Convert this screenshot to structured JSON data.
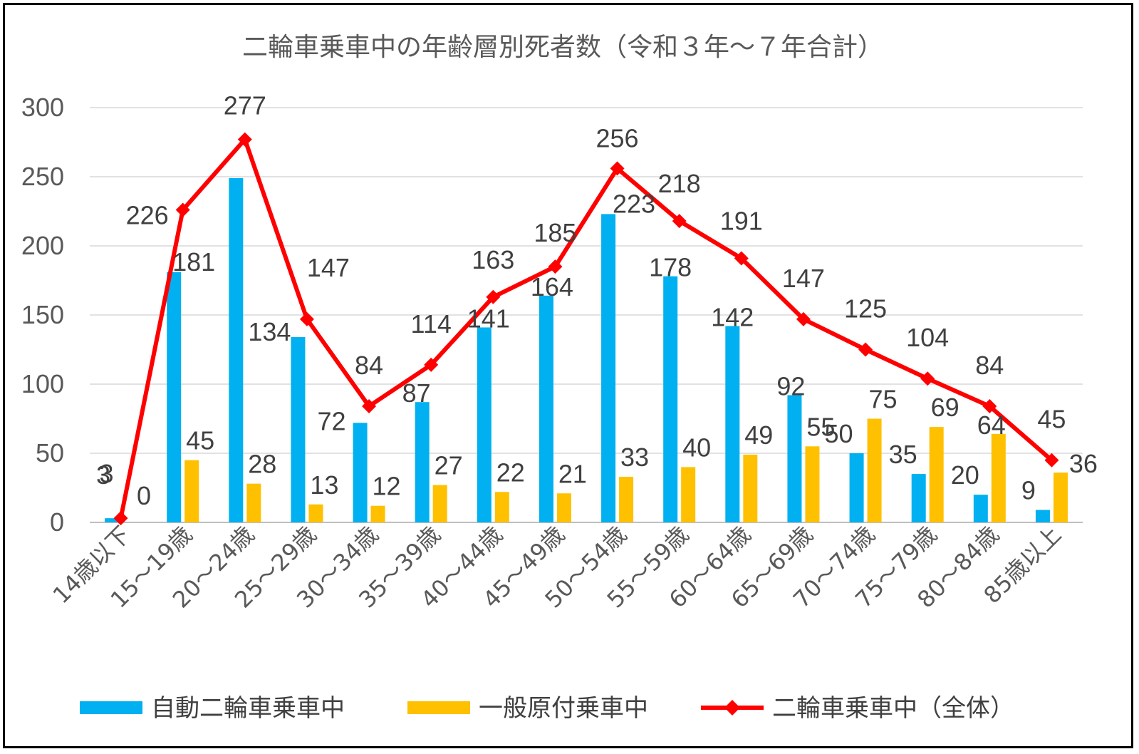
{
  "chart_data": {
    "type": "bar",
    "title": "二輪車乗車中の年齢層別死者数（令和３年～７年合計）",
    "categories": [
      "14歳以下",
      "15～19歳",
      "20～24歳",
      "25～29歳",
      "30～34歳",
      "35～39歳",
      "40～44歳",
      "45～49歳",
      "50～54歳",
      "55～59歳",
      "60～64歳",
      "65～69歳",
      "70～74歳",
      "75～79歳",
      "80～84歳",
      "85歳以上"
    ],
    "series": [
      {
        "name": "自動二輪車乗車中",
        "kind": "bar",
        "color": "#00B0F0",
        "values": [
          3,
          181,
          249,
          134,
          72,
          87,
          141,
          164,
          223,
          178,
          142,
          92,
          50,
          35,
          20,
          9
        ]
      },
      {
        "name": "一般原付乗車中",
        "kind": "bar",
        "color": "#FFC000",
        "values": [
          0,
          45,
          28,
          13,
          12,
          27,
          22,
          21,
          33,
          40,
          49,
          55,
          75,
          69,
          64,
          36
        ]
      },
      {
        "name": "二輪車乗車中（全体）",
        "kind": "line",
        "color": "#FF0000",
        "values": [
          3,
          226,
          277,
          147,
          84,
          114,
          163,
          185,
          256,
          218,
          191,
          147,
          125,
          104,
          84,
          45
        ]
      }
    ],
    "ylim": [
      0,
      300
    ],
    "yticks": [
      "0",
      "50",
      "100",
      "150",
      "200",
      "250",
      "300"
    ],
    "grid": true,
    "legend_position": "bottom"
  }
}
